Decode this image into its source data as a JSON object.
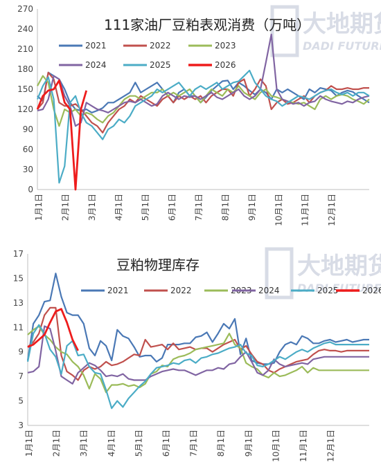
{
  "watermark": {
    "cn": "大地期货",
    "en": "DADI FUTURES"
  },
  "months": [
    "1月1日",
    "2月1日",
    "3月1日",
    "4月1日",
    "5月1日",
    "6月1日",
    "7月1日",
    "8月1日",
    "9月1日",
    "10月1日",
    "11月1日",
    "12月1日"
  ],
  "chart_data": [
    {
      "type": "line",
      "title": "111家油厂豆粕表观消费（万吨）",
      "ylim": [
        0,
        270
      ],
      "yticks": [
        0,
        30,
        60,
        90,
        120,
        150,
        180,
        210,
        240,
        270
      ],
      "xlabel": "",
      "ylabel": "",
      "legend_position": "top",
      "series": [
        {
          "name": "2021",
          "color": "#4a78b5",
          "values": [
            140,
            132,
            175,
            170,
            165,
            150,
            130,
            120,
            118,
            120,
            115,
            118,
            122,
            130,
            130,
            135,
            140,
            145,
            160,
            145,
            150,
            155,
            160,
            150,
            140,
            130,
            145,
            150,
            140,
            140,
            130,
            138,
            148,
            155,
            162,
            163,
            150,
            160,
            155,
            148,
            142,
            150,
            145,
            135,
            150,
            145,
            150,
            145,
            140,
            135,
            150,
            145,
            152,
            150,
            148,
            140,
            145,
            148,
            146,
            140,
            135,
            130
          ]
        },
        {
          "name": "2022",
          "color": "#c0504d",
          "values": [
            120,
            130,
            175,
            165,
            130,
            125,
            125,
            128,
            120,
            110,
            100,
            95,
            85,
            100,
            110,
            120,
            125,
            135,
            130,
            140,
            135,
            130,
            125,
            135,
            140,
            130,
            140,
            135,
            140,
            135,
            140,
            130,
            140,
            145,
            150,
            150,
            140,
            160,
            165,
            140,
            150,
            165,
            155,
            120,
            130,
            135,
            128,
            130,
            135,
            140,
            130,
            140,
            145,
            148,
            155,
            150,
            150,
            152,
            150,
            150,
            152,
            152
          ]
        },
        {
          "name": "2023",
          "color": "#9bbb59",
          "values": [
            155,
            170,
            160,
            120,
            95,
            120,
            115,
            120,
            110,
            115,
            112,
            105,
            100,
            110,
            115,
            125,
            135,
            140,
            140,
            135,
            140,
            145,
            145,
            150,
            140,
            145,
            140,
            145,
            150,
            140,
            130,
            140,
            150,
            145,
            140,
            150,
            145,
            155,
            145,
            140,
            135,
            145,
            150,
            140,
            138,
            135,
            132,
            130,
            128,
            130,
            125,
            120,
            135,
            140,
            135,
            140,
            142,
            140,
            135,
            132,
            128,
            135
          ]
        },
        {
          "name": "2024",
          "color": "#8064a2",
          "values": [
            118,
            120,
            135,
            170,
            165,
            140,
            125,
            95,
            100,
            130,
            125,
            120,
            118,
            115,
            120,
            125,
            130,
            132,
            130,
            135,
            130,
            125,
            128,
            140,
            145,
            140,
            135,
            140,
            138,
            140,
            135,
            140,
            145,
            138,
            135,
            140,
            145,
            150,
            140,
            135,
            140,
            150,
            190,
            232,
            150,
            135,
            132,
            128,
            130,
            125,
            130,
            132,
            140,
            135,
            132,
            130,
            128,
            132,
            130,
            135,
            138,
            140
          ]
        },
        {
          "name": "2025",
          "color": "#4bacc6",
          "values": [
            135,
            155,
            168,
            135,
            10,
            35,
            130,
            140,
            115,
            100,
            95,
            85,
            75,
            90,
            95,
            105,
            100,
            110,
            125,
            130,
            135,
            140,
            150,
            145,
            150,
            155,
            160,
            150,
            140,
            150,
            155,
            150,
            155,
            160,
            150,
            155,
            160,
            162,
            170,
            178,
            160,
            150,
            140,
            135,
            132,
            125,
            130,
            135,
            140,
            138,
            135,
            140,
            145,
            148,
            150,
            145,
            142,
            145,
            140,
            145,
            145,
            140
          ]
        },
        {
          "name": "2026",
          "color": "#ee1c1c",
          "values": [
            120,
            140,
            148,
            150,
            163,
            130,
            120,
            0,
            120,
            148
          ]
        }
      ]
    },
    {
      "type": "line",
      "title": "豆粕物理库存",
      "ylim": [
        3,
        17
      ],
      "yticks": [
        3,
        5,
        7,
        9,
        11,
        13,
        15,
        17
      ],
      "xlabel": "",
      "ylabel": "",
      "legend_position": "top",
      "series": [
        {
          "name": "2021",
          "color": "#4a78b5",
          "values": [
            8.3,
            11.3,
            12.0,
            13.1,
            13.2,
            15.4,
            13.5,
            12.2,
            12.0,
            12.0,
            11.3,
            9.3,
            8.7,
            9.9,
            9.5,
            8.3,
            10.8,
            10.3,
            10.1,
            9.4,
            8.6,
            8.7,
            8.7,
            8.2,
            8.5,
            9.6,
            9.6,
            9.6,
            9.7,
            9.7,
            10.2,
            10.3,
            10.6,
            9.8,
            10.5,
            11.3,
            10.9,
            11.7,
            8.8,
            10.1,
            8.3,
            8.1,
            8.0,
            8.0,
            8.1,
            9.0,
            9.6,
            9.8,
            9.6,
            10.3,
            10.1,
            9.7,
            9.7,
            9.9,
            10.0,
            9.8,
            9.9,
            10.0,
            9.8,
            9.9,
            10.0,
            10.0
          ]
        },
        {
          "name": "2022",
          "color": "#c0504d",
          "values": [
            9.4,
            9.8,
            10.5,
            12.0,
            12.6,
            12.6,
            8.7,
            7.4,
            7.1,
            6.7,
            7.5,
            7.8,
            7.6,
            7.8,
            8.2,
            7.9,
            8.0,
            8.2,
            8.5,
            8.8,
            8.7,
            10.0,
            9.4,
            9.5,
            9.6,
            9.2,
            9.7,
            9.2,
            9.3,
            9.4,
            9.2,
            9.3,
            9.3,
            9.0,
            9.3,
            9.6,
            9.8,
            10.0,
            9.2,
            9.5,
            8.8,
            8.2,
            8.0,
            7.5,
            7.3,
            7.6,
            7.8,
            8.0,
            8.2,
            8.3,
            8.4,
            8.8,
            9.1,
            9.2,
            9.1,
            9.1,
            9.0,
            9.1,
            9.1,
            9.1,
            9.1,
            9.1
          ]
        },
        {
          "name": "2023",
          "color": "#9bbb59",
          "values": [
            10.4,
            10.8,
            11.1,
            10.4,
            10.0,
            9.4,
            9.0,
            8.8,
            8.2,
            7.8,
            7.1,
            6.0,
            7.2,
            6.8,
            5.7,
            6.3,
            6.3,
            6.4,
            6.2,
            6.3,
            6.1,
            6.4,
            7.2,
            7.4,
            7.9,
            7.8,
            8.4,
            8.6,
            8.7,
            8.9,
            9.2,
            9.3,
            9.4,
            9.5,
            9.6,
            9.7,
            10.5,
            9.6,
            9.3,
            8.1,
            7.8,
            7.6,
            7.1,
            6.9,
            7.3,
            7.0,
            7.1,
            7.3,
            7.5,
            7.8,
            7.3,
            7.7,
            7.5,
            7.5,
            7.5,
            7.5,
            7.5,
            7.5,
            7.5,
            7.5,
            7.5,
            7.5
          ]
        },
        {
          "name": "2024",
          "color": "#8064a2",
          "values": [
            7.3,
            7.4,
            7.8,
            11.1,
            10.9,
            9.1,
            7.0,
            6.7,
            6.4,
            7.3,
            7.7,
            8.1,
            7.9,
            7.5,
            7.0,
            7.1,
            7.0,
            7.2,
            6.8,
            6.7,
            6.7,
            6.7,
            7.0,
            7.2,
            7.4,
            7.5,
            7.6,
            7.5,
            7.5,
            7.3,
            7.1,
            7.3,
            7.5,
            7.5,
            7.7,
            7.6,
            8.0,
            8.1,
            8.6,
            9.0,
            8.2,
            7.3,
            7.1,
            7.5,
            8.4,
            8.0,
            7.8,
            7.9,
            8.0,
            8.1,
            8.0,
            8.4,
            8.5,
            8.6,
            8.6,
            8.6,
            8.6,
            8.6,
            8.6,
            8.6,
            8.6,
            8.6
          ]
        },
        {
          "name": "2025",
          "color": "#4bacc6",
          "values": [
            8.2,
            10.5,
            11.2,
            10.5,
            9.2,
            8.6,
            7.2,
            9.5,
            9.9,
            8.7,
            8.8,
            7.8,
            7.3,
            7.2,
            5.9,
            4.4,
            5.0,
            4.5,
            5.2,
            5.7,
            6.2,
            6.6,
            7.2,
            7.7,
            7.8,
            7.9,
            8.1,
            8.0,
            8.3,
            8.4,
            8.1,
            8.5,
            8.6,
            8.8,
            8.9,
            9.1,
            9.3,
            9.4,
            9.6,
            8.9,
            8.7,
            7.9,
            7.8,
            8.0,
            8.3,
            8.6,
            8.4,
            8.7,
            9.0,
            9.2,
            9.0,
            9.3,
            9.5,
            9.7,
            9.8,
            9.6,
            9.6,
            9.6,
            9.6,
            9.6,
            9.6,
            9.6
          ]
        },
        {
          "name": "2026",
          "color": "#ee1c1c",
          "values": [
            9.4,
            9.6,
            10.0,
            10.4,
            11.4,
            12.3,
            12.5,
            11.4,
            10.0,
            9.1
          ]
        }
      ]
    }
  ]
}
